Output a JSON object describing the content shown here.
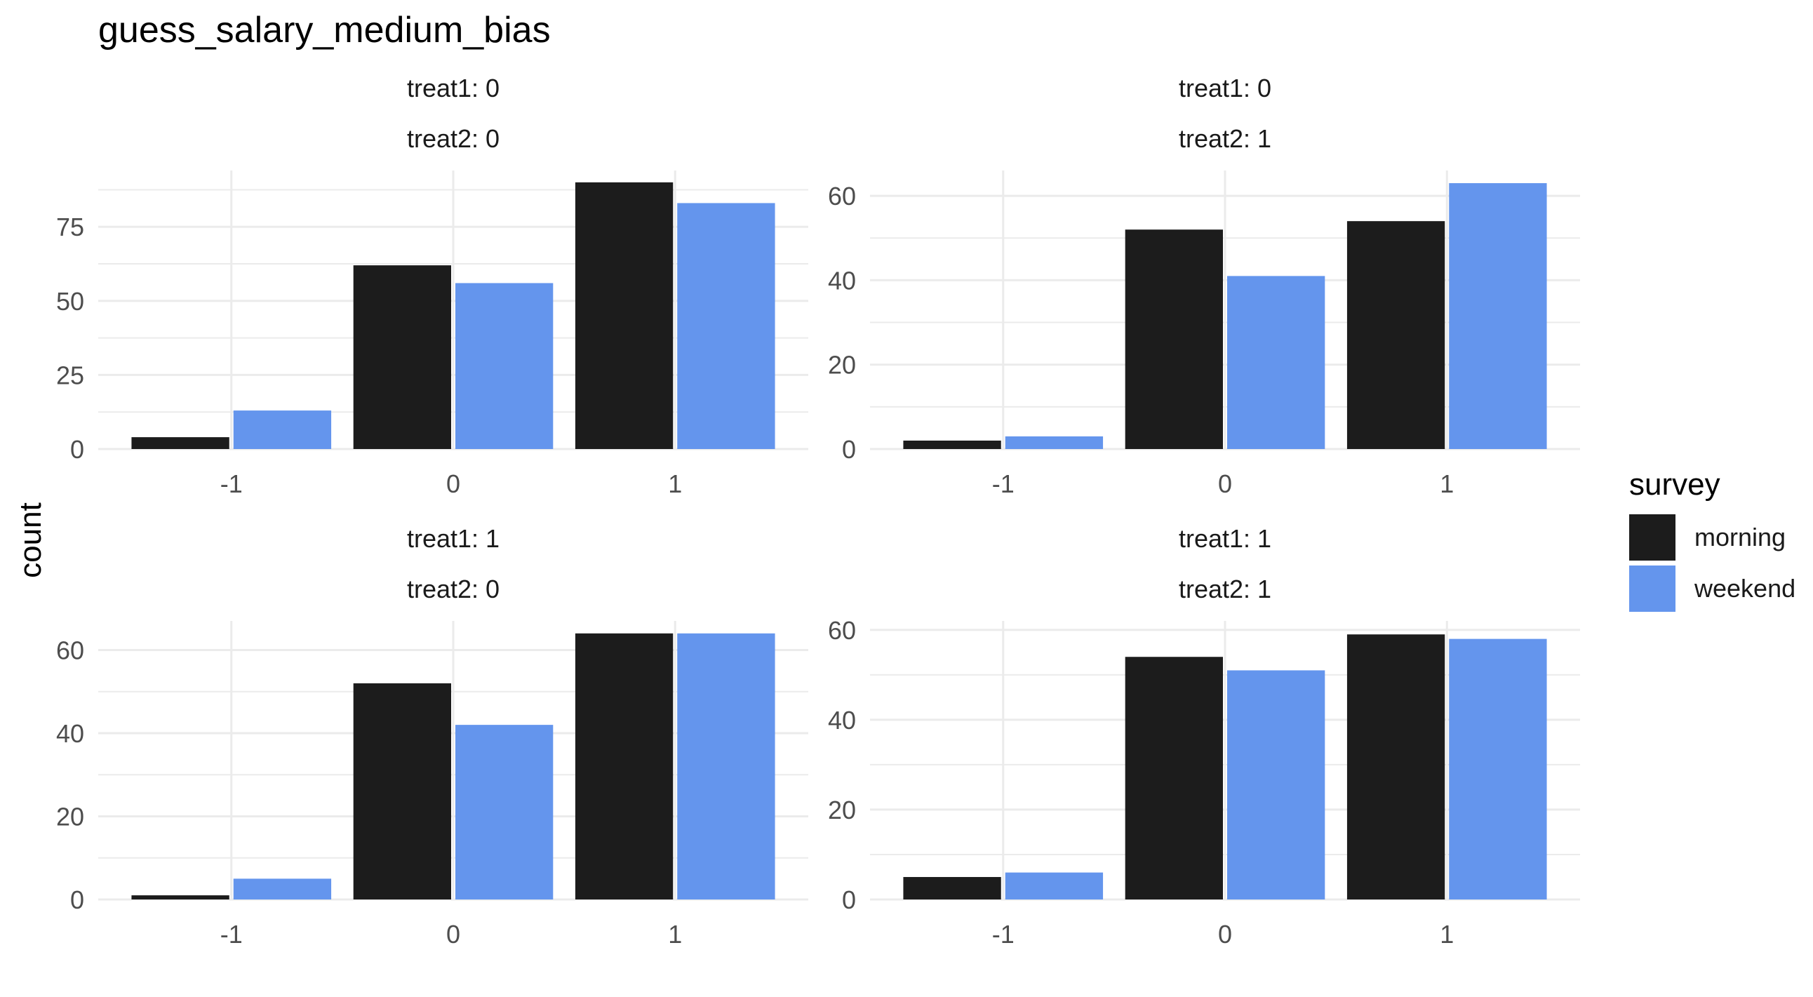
{
  "title": "guess_salary_medium_bias",
  "ylabel": "count",
  "legend": {
    "title": "survey",
    "placement": "right",
    "items": [
      {
        "label": "morning",
        "color": "#1c1c1c"
      },
      {
        "label": "weekend",
        "color": "#6495ed"
      }
    ]
  },
  "colors": {
    "grid": "#ebebeb",
    "axis_text": "#4d4d4d",
    "strip_text": "#1a1a1a"
  },
  "chart_data": [
    {
      "type": "bar",
      "strip": [
        "treat1: 0",
        "treat2: 0"
      ],
      "categories": [
        "-1",
        "0",
        "1"
      ],
      "series": [
        {
          "name": "morning",
          "values": [
            4,
            62,
            90
          ]
        },
        {
          "name": "weekend",
          "values": [
            13,
            56,
            83
          ]
        }
      ],
      "ylim": [
        0,
        94
      ],
      "yticks": [
        0,
        25,
        50,
        75
      ],
      "grid": true
    },
    {
      "type": "bar",
      "strip": [
        "treat1: 0",
        "treat2: 1"
      ],
      "categories": [
        "-1",
        "0",
        "1"
      ],
      "series": [
        {
          "name": "morning",
          "values": [
            2,
            52,
            54
          ]
        },
        {
          "name": "weekend",
          "values": [
            3,
            41,
            63
          ]
        }
      ],
      "ylim": [
        0,
        66
      ],
      "yticks": [
        0,
        20,
        40,
        60
      ],
      "grid": true
    },
    {
      "type": "bar",
      "strip": [
        "treat1: 1",
        "treat2: 0"
      ],
      "categories": [
        "-1",
        "0",
        "1"
      ],
      "series": [
        {
          "name": "morning",
          "values": [
            1,
            52,
            64
          ]
        },
        {
          "name": "weekend",
          "values": [
            5,
            42,
            64
          ]
        }
      ],
      "ylim": [
        0,
        67
      ],
      "yticks": [
        0,
        20,
        40,
        60
      ],
      "grid": true
    },
    {
      "type": "bar",
      "strip": [
        "treat1: 1",
        "treat2: 1"
      ],
      "categories": [
        "-1",
        "0",
        "1"
      ],
      "series": [
        {
          "name": "morning",
          "values": [
            5,
            54,
            59
          ]
        },
        {
          "name": "weekend",
          "values": [
            6,
            51,
            58
          ]
        }
      ],
      "ylim": [
        0,
        62
      ],
      "yticks": [
        0,
        20,
        40,
        60
      ],
      "grid": true
    }
  ]
}
